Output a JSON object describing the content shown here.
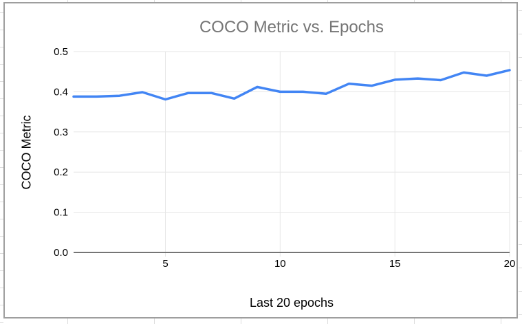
{
  "chart": {
    "border_color": "#9e9e9e",
    "background_color": "#ffffff",
    "title_color": "#757575",
    "grid_color": "#e6e6e6",
    "axis_color": "#757575",
    "tick_label_color": "#000000"
  },
  "chart_data": {
    "type": "line",
    "title": "COCO Metric vs. Epochs",
    "xlabel": "Last 20 epochs",
    "ylabel": "COCO Metric",
    "x": [
      1,
      2,
      3,
      4,
      5,
      6,
      7,
      8,
      9,
      10,
      11,
      12,
      13,
      14,
      15,
      16,
      17,
      18,
      19,
      20
    ],
    "series": [
      {
        "name": "coco-metric",
        "color": "#4285f4",
        "values": [
          0.388,
          0.388,
          0.39,
          0.399,
          0.381,
          0.397,
          0.397,
          0.383,
          0.412,
          0.4,
          0.4,
          0.395,
          0.42,
          0.415,
          0.43,
          0.433,
          0.429,
          0.448,
          0.44,
          0.454
        ]
      }
    ],
    "xlim": [
      1,
      20
    ],
    "ylim": [
      0,
      0.5
    ],
    "xticks": [
      5,
      10,
      15,
      20
    ],
    "xtick_labels": [
      "5",
      "10",
      "15",
      "20"
    ],
    "yticks": [
      0.0,
      0.1,
      0.2,
      0.3,
      0.4,
      0.5
    ],
    "ytick_labels": [
      "0.0",
      "0.1",
      "0.2",
      "0.3",
      "0.4",
      "0.5"
    ],
    "grid": true,
    "legend": "none"
  }
}
